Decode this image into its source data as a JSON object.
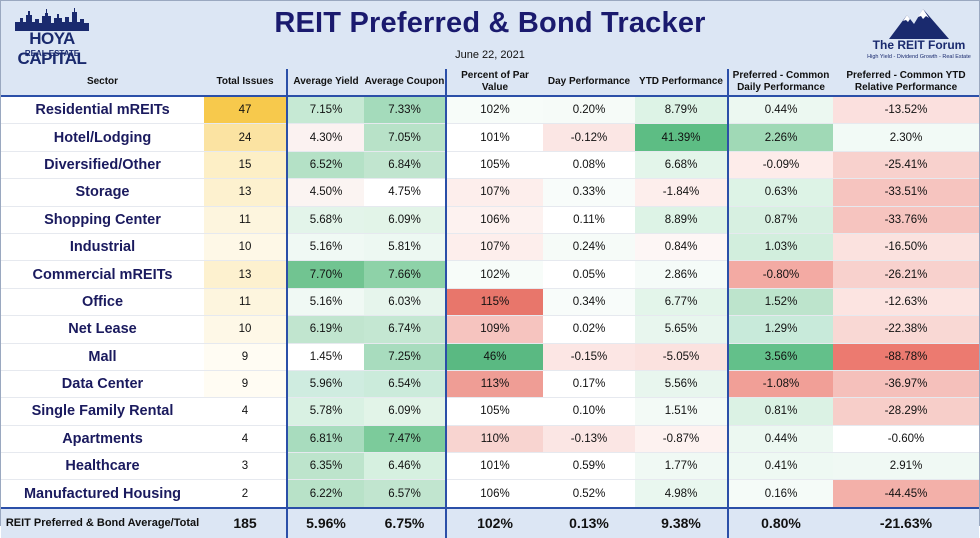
{
  "header": {
    "title": "REIT Preferred & Bond Tracker",
    "date": "June 22, 2021",
    "logo_left_name": "HOYA CAPITAL",
    "logo_left_sub": "REAL ESTATE",
    "logo_right_name": "The REIT Forum",
    "logo_right_tagline": "High Yield - Dividend Growth - Real Estate"
  },
  "chart_data": {
    "type": "table",
    "title": "REIT Preferred & Bond Tracker",
    "subtitle": "June 22, 2021",
    "columns": [
      "Sector",
      "Total Issues",
      "Average Yield",
      "Average Coupon",
      "Percent of Par Value",
      "Day Performance",
      "YTD Performance",
      "Preferred - Common Daily Performance",
      "Preferred - Common YTD Relative Performance"
    ],
    "rows": [
      [
        "Residential mREITs",
        "47",
        "7.15%",
        "7.33%",
        "102%",
        "0.20%",
        "8.79%",
        "0.44%",
        "-13.52%"
      ],
      [
        "Hotel/Lodging",
        "24",
        "4.30%",
        "7.05%",
        "101%",
        "-0.12%",
        "41.39%",
        "2.26%",
        "2.30%"
      ],
      [
        "Diversified/Other",
        "15",
        "6.52%",
        "6.84%",
        "105%",
        "0.08%",
        "6.68%",
        "-0.09%",
        "-25.41%"
      ],
      [
        "Storage",
        "13",
        "4.50%",
        "4.75%",
        "107%",
        "0.33%",
        "-1.84%",
        "0.63%",
        "-33.51%"
      ],
      [
        "Shopping Center",
        "11",
        "5.68%",
        "6.09%",
        "106%",
        "0.11%",
        "8.89%",
        "0.87%",
        "-33.76%"
      ],
      [
        "Industrial",
        "10",
        "5.16%",
        "5.81%",
        "107%",
        "0.24%",
        "0.84%",
        "1.03%",
        "-16.50%"
      ],
      [
        "Commercial mREITs",
        "13",
        "7.70%",
        "7.66%",
        "102%",
        "0.05%",
        "2.86%",
        "-0.80%",
        "-26.21%"
      ],
      [
        "Office",
        "11",
        "5.16%",
        "6.03%",
        "115%",
        "0.34%",
        "6.77%",
        "1.52%",
        "-12.63%"
      ],
      [
        "Net Lease",
        "10",
        "6.19%",
        "6.74%",
        "109%",
        "0.02%",
        "5.65%",
        "1.29%",
        "-22.38%"
      ],
      [
        "Mall",
        "9",
        "1.45%",
        "7.25%",
        "46%",
        "-0.15%",
        "-5.05%",
        "3.56%",
        "-88.78%"
      ],
      [
        "Data Center",
        "9",
        "5.96%",
        "6.54%",
        "113%",
        "0.17%",
        "5.56%",
        "-1.08%",
        "-36.97%"
      ],
      [
        "Single Family Rental",
        "4",
        "5.78%",
        "6.09%",
        "105%",
        "0.10%",
        "1.51%",
        "0.81%",
        "-28.29%"
      ],
      [
        "Apartments",
        "4",
        "6.81%",
        "7.47%",
        "110%",
        "-0.13%",
        "-0.87%",
        "0.44%",
        "-0.60%"
      ],
      [
        "Healthcare",
        "3",
        "6.35%",
        "6.46%",
        "101%",
        "0.59%",
        "1.77%",
        "0.41%",
        "2.91%"
      ],
      [
        "Manufactured Housing",
        "2",
        "6.22%",
        "6.57%",
        "106%",
        "0.52%",
        "4.98%",
        "0.16%",
        "-44.45%"
      ]
    ],
    "total": [
      "REIT Preferred & Bond Average/Total",
      "185",
      "5.96%",
      "6.75%",
      "102%",
      "0.13%",
      "9.38%",
      "0.80%",
      "-21.63%"
    ],
    "cell_colors": [
      [
        "#ffffff",
        "#f7c94c",
        "#c6e9d4",
        "#a4dbbb",
        "#f7fcf9",
        "#f6fbf8",
        "#ddf3e6",
        "#ecf8f1",
        "#fbe0de"
      ],
      [
        "#ffffff",
        "#fbe3a2",
        "#fbf2f1",
        "#b8e2c8",
        "#ffffff",
        "#fbe6e4",
        "#5dbd84",
        "#a0d9b6",
        "#f2faf6"
      ],
      [
        "#ffffff",
        "#fdefc6",
        "#b4e1c6",
        "#c1e5cf",
        "#ffffff",
        "#ffffff",
        "#e3f5ea",
        "#fdecea",
        "#f8d1cd"
      ],
      [
        "#ffffff",
        "#fdf1cf",
        "#fbf4f2",
        "#ffffff",
        "#fdeeec",
        "#f8fcfa",
        "#fdeeec",
        "#ddf3e6",
        "#f6c4bf"
      ],
      [
        "#ffffff",
        "#fdf5de",
        "#e3f4ea",
        "#e2f4e8",
        "#fdf2f0",
        "#ffffff",
        "#ddf3e6",
        "#d7f0e1",
        "#f6c4bf"
      ],
      [
        "#ffffff",
        "#fef8e7",
        "#f0f9f4",
        "#edf8f2",
        "#fdeeec",
        "#f6fbf8",
        "#fdf6f5",
        "#d2eedd",
        "#fbe2df"
      ],
      [
        "#ffffff",
        "#fdf1cf",
        "#71c491",
        "#8ed2a8",
        "#f7fcf9",
        "#ffffff",
        "#f5fbf8",
        "#f3aaa3",
        "#f8d1cd"
      ],
      [
        "#ffffff",
        "#fdf5de",
        "#f0f9f4",
        "#e6f5ec",
        "#e8766b",
        "#f8fcfa",
        "#e3f5ea",
        "#bde4cc",
        "#fce4e1"
      ],
      [
        "#ffffff",
        "#fef8e7",
        "#c1e5cf",
        "#c4e7d2",
        "#f6c4bf",
        "#ffffff",
        "#e8f6ee",
        "#c8eada",
        "#f9d8d4"
      ],
      [
        "#ffffff",
        "#fffcf3",
        "#ffffff",
        "#a8dcbe",
        "#5ab982",
        "#fce6e4",
        "#fbe2df",
        "#63c08a",
        "#ec7a70"
      ],
      [
        "#ffffff",
        "#fffcf3",
        "#cfece0",
        "#cbebdb",
        "#ef9d95",
        "#ffffff",
        "#e8f6ee",
        "#f19f97",
        "#f5c0bb"
      ],
      [
        "#ffffff",
        "#ffffff",
        "#d9f1e3",
        "#e2f4e8",
        "#ffffff",
        "#ffffff",
        "#f3faf6",
        "#dbf2e4",
        "#f7cec9"
      ],
      [
        "#ffffff",
        "#ffffff",
        "#a8dcbe",
        "#7ccb9b",
        "#f8d4d0",
        "#fbe6e4",
        "#fdf2f0",
        "#ecf8f1",
        "#ffffff"
      ],
      [
        "#ffffff",
        "#ffffff",
        "#bde4cc",
        "#d6f0e0",
        "#ffffff",
        "#ffffff",
        "#f0f9f4",
        "#eef9f3",
        "#f0f9f4"
      ],
      [
        "#ffffff",
        "#ffffff",
        "#b8e2c8",
        "#c1e5cf",
        "#ffffff",
        "#ffffff",
        "#e9f7ef",
        "#f5fbf8",
        "#f3b0a9"
      ]
    ],
    "grid": false,
    "legend": "none"
  }
}
